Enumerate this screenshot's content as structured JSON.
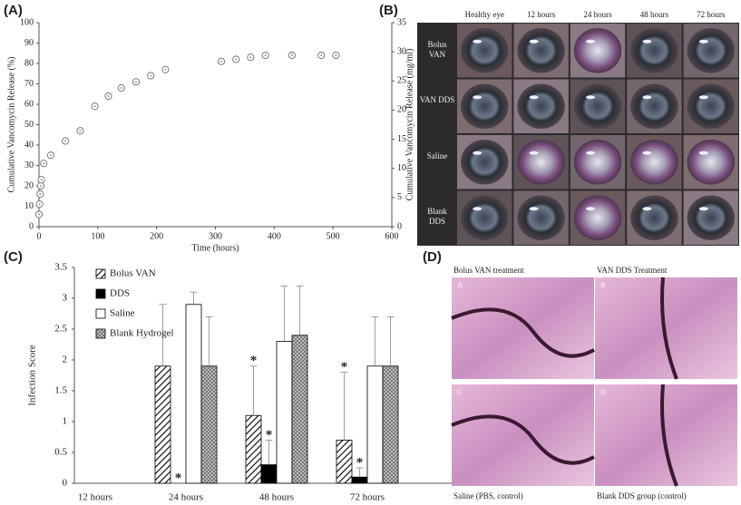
{
  "panel_labels": [
    "(A)",
    "(B)",
    "(C)",
    "(D)"
  ],
  "chart_data": [
    {
      "type": "scatter",
      "x": [
        0,
        1,
        2,
        3,
        4,
        8,
        20,
        45,
        70,
        95,
        118,
        140,
        165,
        190,
        215,
        310,
        335,
        360,
        385,
        430,
        480,
        505
      ],
      "values": [
        6,
        11,
        16,
        20,
        23,
        31,
        35,
        42,
        47,
        59,
        64,
        68,
        71,
        74,
        77,
        81,
        82,
        83,
        84,
        84,
        84,
        84
      ],
      "color": "#777777",
      "xlabel": "Time (hours)",
      "ylabel": "Cumulative Vancomycin Release (%)",
      "y2label": "Cumulative Vancomycin Release (mg/ml)",
      "xlim": [
        0,
        600
      ],
      "xticks": [
        0,
        100,
        200,
        300,
        400,
        500,
        600
      ],
      "ylim": [
        0,
        100
      ],
      "yticks": [
        0,
        10,
        20,
        30,
        40,
        50,
        60,
        70,
        80,
        90,
        100
      ],
      "y2lim": [
        0,
        35
      ],
      "y2ticks": [
        0,
        5,
        10,
        15,
        20,
        25,
        30,
        35
      ]
    },
    {
      "type": "bar",
      "categories": [
        "12 hours",
        "24 hours",
        "48 hours",
        "72 hours"
      ],
      "series": [
        {
          "name": "Bolus VAN",
          "color": "#000000",
          "pattern": "hatch",
          "values": [
            0,
            1.9,
            1.1,
            0.7
          ],
          "errors": [
            null,
            1.0,
            0.8,
            1.1
          ]
        },
        {
          "name": "DDS",
          "color": "#000000",
          "pattern": "solid",
          "values": [
            0,
            0,
            0.3,
            0.1
          ],
          "errors": [
            null,
            null,
            0.4,
            0.15
          ]
        },
        {
          "name": "Saline",
          "color": "#000000",
          "pattern": "none",
          "values": [
            0,
            2.9,
            2.3,
            1.9
          ],
          "errors": [
            null,
            0.2,
            0.9,
            0.8
          ]
        },
        {
          "name": "Blank Hydrogel",
          "color": "#000000",
          "pattern": "crosshatch",
          "values": [
            0,
            1.9,
            2.4,
            1.9
          ],
          "errors": [
            null,
            0.8,
            0.8,
            0.8
          ]
        }
      ],
      "ylabel": "Infection Score",
      "ylim": [
        0,
        3.5
      ],
      "yticks": [
        0,
        0.5,
        1,
        1.5,
        2,
        2.5,
        3,
        3.5
      ],
      "legend": "upper left",
      "annotations": [
        {
          "text": "*",
          "category": "24 hours",
          "series": "DDS"
        },
        {
          "text": "*",
          "category": "48 hours",
          "series": "Bolus VAN"
        },
        {
          "text": "*",
          "category": "48 hours",
          "series": "DDS"
        },
        {
          "text": "*",
          "category": "72 hours",
          "series": "Bolus VAN"
        },
        {
          "text": "*",
          "category": "72 hours",
          "series": "DDS"
        }
      ]
    }
  ],
  "image_grid": {
    "columns": [
      "Healthy eye",
      "12 hours",
      "24 hours",
      "48 hours",
      "72 hours"
    ],
    "rows": [
      "Bolus VAN",
      "VAN DDS",
      "Saline",
      "Blank DDS"
    ]
  },
  "histology": {
    "letters": [
      "A",
      "B",
      "C",
      "D"
    ],
    "captions": [
      "Bolus VAN treatment",
      "VAN DDS Treatment",
      "Saline (PBS, control)",
      "Blank DDS group (control)"
    ]
  }
}
